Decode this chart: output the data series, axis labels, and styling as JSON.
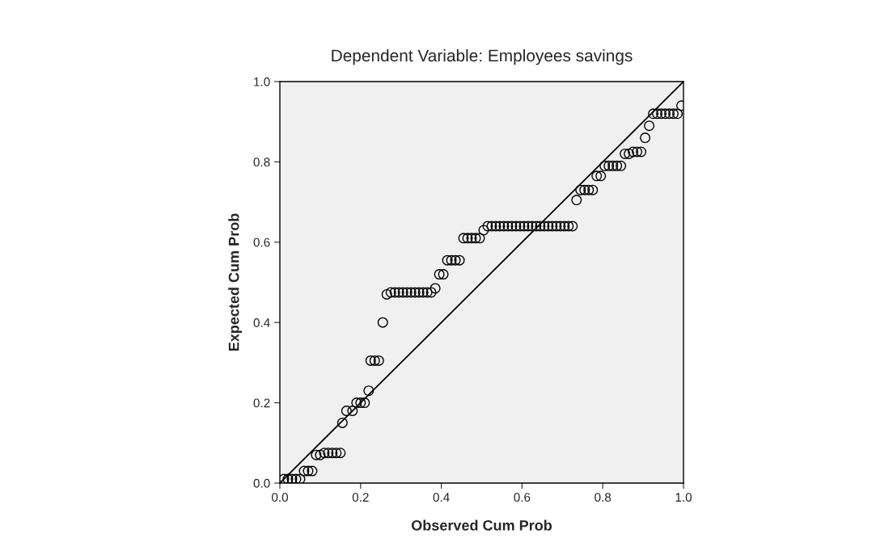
{
  "chart_data": {
    "type": "scatter",
    "title": "Dependent Variable: Employees savings",
    "xlabel": "Observed Cum Prob",
    "ylabel": "Expected Cum Prob",
    "xlim": [
      0,
      1
    ],
    "ylim": [
      0,
      1
    ],
    "xticks": [
      {
        "value": 0,
        "label": "0.0"
      },
      {
        "value": 0.2,
        "label": "0.2"
      },
      {
        "value": 0.4,
        "label": "0.4"
      },
      {
        "value": 0.6,
        "label": "0.6"
      },
      {
        "value": 0.8,
        "label": "0.8"
      },
      {
        "value": 1,
        "label": "1.0"
      }
    ],
    "yticks": [
      {
        "value": 0,
        "label": "0.0"
      },
      {
        "value": 0.2,
        "label": "0.2"
      },
      {
        "value": 0.4,
        "label": "0.4"
      },
      {
        "value": 0.6,
        "label": "0.6"
      },
      {
        "value": 0.8,
        "label": "0.8"
      },
      {
        "value": 1,
        "label": "1.0"
      }
    ],
    "grid": false,
    "legend": false,
    "marker": "circle",
    "series": [
      {
        "color": "#000000",
        "x": [
          0.01,
          0.02,
          0.03,
          0.04,
          0.05,
          0.06,
          0.07,
          0.08,
          0.09,
          0.1,
          0.11,
          0.12,
          0.13,
          0.14,
          0.15,
          0.155,
          0.165,
          0.18,
          0.19,
          0.2,
          0.21,
          0.22,
          0.225,
          0.235,
          0.245,
          0.255,
          0.265,
          0.275,
          0.285,
          0.295,
          0.305,
          0.315,
          0.325,
          0.335,
          0.345,
          0.355,
          0.365,
          0.375,
          0.385,
          0.395,
          0.405,
          0.415,
          0.425,
          0.435,
          0.445,
          0.455,
          0.465,
          0.475,
          0.485,
          0.495,
          0.505,
          0.515,
          0.525,
          0.535,
          0.545,
          0.555,
          0.565,
          0.575,
          0.585,
          0.595,
          0.605,
          0.615,
          0.625,
          0.635,
          0.645,
          0.655,
          0.665,
          0.675,
          0.685,
          0.695,
          0.705,
          0.715,
          0.725,
          0.735,
          0.745,
          0.755,
          0.765,
          0.775,
          0.785,
          0.795,
          0.805,
          0.815,
          0.825,
          0.835,
          0.845,
          0.855,
          0.865,
          0.875,
          0.885,
          0.895,
          0.905,
          0.915,
          0.925,
          0.935,
          0.945,
          0.955,
          0.965,
          0.975,
          0.985,
          0.995
        ],
        "values": [
          0.01,
          0.01,
          0.01,
          0.01,
          0.01,
          0.03,
          0.03,
          0.03,
          0.07,
          0.07,
          0.075,
          0.075,
          0.075,
          0.075,
          0.075,
          0.15,
          0.18,
          0.18,
          0.2,
          0.2,
          0.2,
          0.23,
          0.305,
          0.305,
          0.305,
          0.4,
          0.47,
          0.475,
          0.475,
          0.475,
          0.475,
          0.475,
          0.475,
          0.475,
          0.475,
          0.475,
          0.475,
          0.475,
          0.485,
          0.52,
          0.52,
          0.555,
          0.555,
          0.555,
          0.555,
          0.61,
          0.61,
          0.61,
          0.61,
          0.61,
          0.63,
          0.64,
          0.64,
          0.64,
          0.64,
          0.64,
          0.64,
          0.64,
          0.64,
          0.64,
          0.64,
          0.64,
          0.64,
          0.64,
          0.64,
          0.64,
          0.64,
          0.64,
          0.64,
          0.64,
          0.64,
          0.64,
          0.64,
          0.705,
          0.73,
          0.73,
          0.73,
          0.73,
          0.765,
          0.765,
          0.79,
          0.79,
          0.79,
          0.79,
          0.79,
          0.82,
          0.82,
          0.825,
          0.825,
          0.825,
          0.86,
          0.89,
          0.92,
          0.92,
          0.92,
          0.92,
          0.92,
          0.92,
          0.92,
          0.94
        ]
      },
      {
        "type": "line",
        "color": "#000000",
        "marker": "none",
        "x": [
          0,
          1
        ],
        "values": [
          0,
          1
        ]
      }
    ]
  }
}
